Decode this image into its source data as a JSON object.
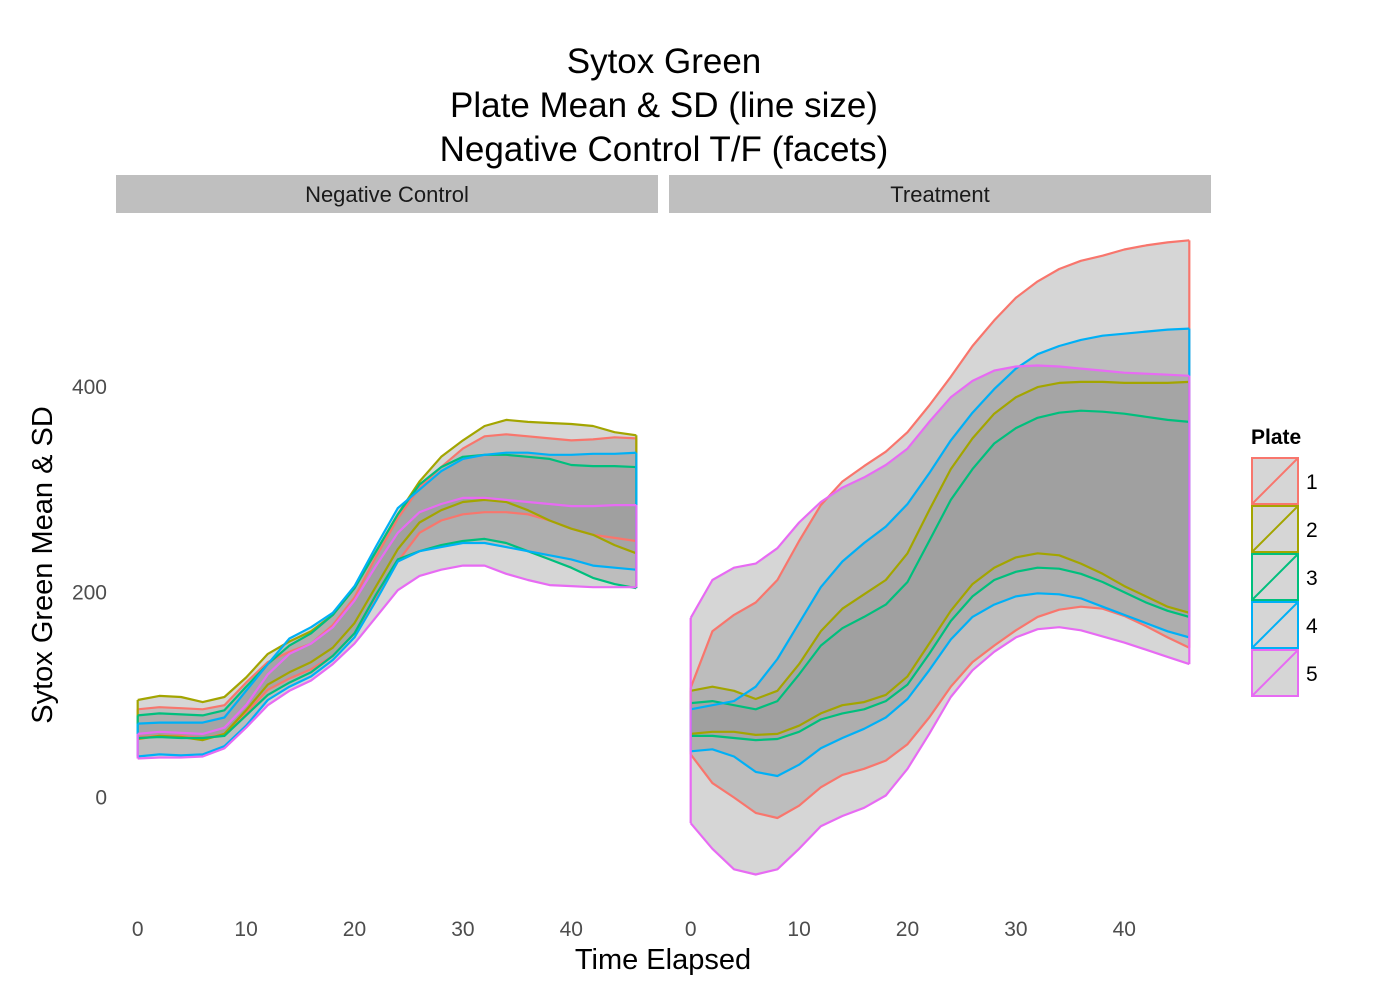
{
  "title_lines": [
    "Sytox Green",
    "Plate Mean & SD (line size)",
    "Negative Control T/F (facets)"
  ],
  "chart_data": {
    "type": "area",
    "xlabel": "Time Elapsed",
    "ylabel": "Sytox Green Mean & SD",
    "x_ticks": [
      0,
      10,
      20,
      30,
      40
    ],
    "y_ticks": [
      0,
      200,
      400
    ],
    "xlim": [
      -2,
      48
    ],
    "ylim": [
      -95,
      555
    ],
    "legend": {
      "title": "Plate",
      "placement": "right"
    },
    "series_colors": {
      "1": "#F8766D",
      "2": "#A3A500",
      "3": "#00BF7D",
      "4": "#00B0F6",
      "5": "#E76BF3"
    },
    "fill_color": "#999999",
    "x": [
      0,
      2,
      4,
      6,
      8,
      10,
      12,
      14,
      16,
      18,
      20,
      22,
      24,
      26,
      28,
      30,
      32,
      34,
      36,
      38,
      40,
      42,
      44,
      46
    ],
    "facets": [
      {
        "label": "Negative Control",
        "series": [
          {
            "name": "1",
            "upper": [
              86,
              88,
              87,
              86,
              90,
              112,
              132,
              142,
              150,
              168,
              195,
              235,
              272,
              302,
              322,
              340,
              352,
              354,
              352,
              350,
              348,
              349,
              351,
              350
            ],
            "lower": [
              59,
              60,
              60,
              58,
              62,
              82,
              105,
              116,
              125,
              138,
              160,
              195,
              230,
              258,
              270,
              276,
              278,
              278,
              276,
              270,
              262,
              256,
              253,
              250
            ]
          },
          {
            "name": "2",
            "upper": [
              95,
              99,
              98,
              93,
              98,
              117,
              140,
              152,
              162,
              178,
              204,
              240,
              276,
              308,
              332,
              348,
              362,
              368,
              366,
              365,
              364,
              362,
              356,
              353
            ],
            "lower": [
              57,
              60,
              59,
              56,
              62,
              85,
              110,
              122,
              132,
              146,
              170,
              206,
              242,
              268,
              280,
              288,
              290,
              288,
              280,
              270,
              262,
              256,
              246,
              238
            ]
          },
          {
            "name": "3",
            "upper": [
              80,
              82,
              81,
              80,
              85,
              108,
              130,
              148,
              160,
              178,
              204,
              240,
              276,
              305,
              322,
              332,
              334,
              334,
              332,
              330,
              324,
              323,
              323,
              322
            ],
            "lower": [
              58,
              59,
              58,
              58,
              60,
              80,
              100,
              112,
              122,
              138,
              160,
              198,
              232,
              240,
              246,
              250,
              252,
              248,
              240,
              232,
              224,
              214,
              208,
              204
            ]
          },
          {
            "name": "4",
            "upper": [
              72,
              73,
              73,
              73,
              78,
              104,
              130,
              155,
              166,
              180,
              206,
              245,
              282,
              300,
              318,
              330,
              334,
              336,
              336,
              334,
              334,
              335,
              335,
              336
            ],
            "lower": [
              40,
              42,
              41,
              42,
              50,
              70,
              95,
              108,
              118,
              134,
              156,
              192,
              230,
              240,
              244,
              248,
              248,
              244,
              240,
              236,
              232,
              226,
              224,
              222
            ]
          },
          {
            "name": "5",
            "upper": [
              62,
              64,
              63,
              62,
              68,
              90,
              120,
              140,
              150,
              166,
              192,
              226,
              258,
              278,
              286,
              292,
              292,
              290,
              288,
              286,
              284,
              284,
              285,
              285
            ],
            "lower": [
              38,
              39,
              39,
              40,
              48,
              68,
              90,
              104,
              114,
              130,
              150,
              176,
              202,
              216,
              222,
              226,
              226,
              218,
              212,
              207,
              206,
              205,
              205,
              205
            ]
          }
        ]
      },
      {
        "label": "Treatment",
        "series": [
          {
            "name": "1",
            "upper": [
              107,
              162,
              178,
              190,
              212,
              250,
              285,
              308,
              323,
              337,
              356,
              382,
              410,
              440,
              465,
              487,
              503,
              515,
              523,
              528,
              534,
              538,
              541,
              543
            ],
            "lower": [
              42,
              14,
              0,
              -15,
              -20,
              -8,
              10,
              22,
              28,
              36,
              52,
              78,
              108,
              132,
              148,
              163,
              176,
              183,
              186,
              184,
              177,
              167,
              156,
              146
            ]
          },
          {
            "name": "2",
            "upper": [
              104,
              108,
              104,
              96,
              104,
              130,
              162,
              184,
              198,
              212,
              238,
              280,
              320,
              350,
              374,
              390,
              400,
              404,
              405,
              405,
              404,
              404,
              404,
              405
            ],
            "lower": [
              62,
              64,
              64,
              61,
              62,
              70,
              82,
              90,
              93,
              100,
              118,
              150,
              182,
              208,
              224,
              234,
              238,
              236,
              228,
              218,
              206,
              196,
              186,
              180
            ]
          },
          {
            "name": "3",
            "upper": [
              92,
              94,
              90,
              86,
              94,
              120,
              148,
              165,
              176,
              188,
              210,
              250,
              290,
              320,
              345,
              360,
              370,
              375,
              377,
              376,
              374,
              371,
              368,
              366
            ],
            "lower": [
              60,
              60,
              58,
              56,
              57,
              64,
              76,
              82,
              86,
              94,
              110,
              140,
              172,
              196,
              212,
              220,
              224,
              223,
              218,
              210,
              200,
              190,
              182,
              176
            ]
          },
          {
            "name": "4",
            "upper": [
              86,
              90,
              94,
              108,
              135,
              170,
              205,
              230,
              248,
              264,
              286,
              316,
              348,
              375,
              398,
              418,
              432,
              440,
              446,
              450,
              452,
              454,
              456,
              457
            ],
            "lower": [
              45,
              47,
              40,
              25,
              21,
              32,
              48,
              58,
              67,
              78,
              96,
              124,
              154,
              176,
              188,
              196,
              199,
              198,
              194,
              186,
              178,
              170,
              162,
              156
            ]
          },
          {
            "name": "5",
            "upper": [
              175,
              212,
              224,
              228,
              243,
              268,
              288,
              302,
              312,
              324,
              340,
              366,
              390,
              406,
              416,
              420,
              421,
              420,
              418,
              416,
              414,
              413,
              412,
              411
            ],
            "lower": [
              -25,
              -50,
              -70,
              -75,
              -70,
              -50,
              -28,
              -18,
              -10,
              2,
              28,
              62,
              98,
              124,
              142,
              156,
              164,
              166,
              163,
              157,
              151,
              144,
              137,
              130
            ]
          }
        ]
      }
    ]
  }
}
